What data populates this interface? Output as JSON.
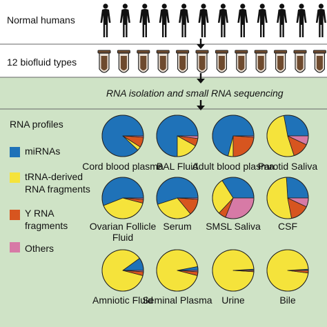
{
  "rows": {
    "humans_label": "Normal humans",
    "biofluid_label": "12 biofluid types",
    "step_label": "RNA isolation and small RNA sequencing",
    "profiles_label": "RNA profiles"
  },
  "icons": {
    "human": "human-silhouette-icon",
    "tube": "test-tube-icon",
    "arrow": "down-arrow-icon"
  },
  "counts": {
    "humans": 12,
    "tubes": 12
  },
  "legend": [
    {
      "key": "mirna",
      "label": "miRNAs",
      "color": "#1f72b8"
    },
    {
      "key": "trna",
      "label": "tRNA-derived RNA fragments",
      "color": "#f5e33b"
    },
    {
      "key": "yrna",
      "label": "Y RNA fragments",
      "color": "#d7551f"
    },
    {
      "key": "other",
      "label": "Others",
      "color": "#d77aa6"
    }
  ],
  "colors": {
    "background_band": "#cfe3c6",
    "outline": "#222222",
    "arrow": "#111111"
  },
  "chart_data": {
    "type": "pie",
    "slice_order": [
      "mirna",
      "trna",
      "yrna",
      "other"
    ],
    "pies": [
      {
        "label": "Cord blood plasma",
        "values": {
          "mirna": 0.88,
          "trna": 0.03,
          "yrna": 0.08,
          "other": 0.01
        }
      },
      {
        "label": "BAL Fluid",
        "values": {
          "mirna": 0.75,
          "trna": 0.17,
          "yrna": 0.06,
          "other": 0.02
        }
      },
      {
        "label": "Adult blood plasma",
        "values": {
          "mirna": 0.71,
          "trna": 0.04,
          "yrna": 0.24,
          "other": 0.01
        }
      },
      {
        "label": "Parotid Saliva",
        "values": {
          "mirna": 0.28,
          "trna": 0.52,
          "yrna": 0.13,
          "other": 0.07
        }
      },
      {
        "label": "Ovarian Follicle Fluid",
        "values": {
          "mirna": 0.56,
          "trna": 0.4,
          "yrna": 0.03,
          "other": 0.01
        }
      },
      {
        "label": "Serum",
        "values": {
          "mirna": 0.55,
          "trna": 0.31,
          "yrna": 0.13,
          "other": 0.01
        }
      },
      {
        "label": "SMSL Saliva",
        "values": {
          "mirna": 0.34,
          "trna": 0.29,
          "yrna": 0.06,
          "other": 0.31
        }
      },
      {
        "label": "CSF",
        "values": {
          "mirna": 0.26,
          "trna": 0.52,
          "yrna": 0.15,
          "other": 0.07
        }
      },
      {
        "label": "Amniotic Fluid",
        "values": {
          "mirna": 0.1,
          "trna": 0.86,
          "yrna": 0.03,
          "other": 0.01
        }
      },
      {
        "label": "Seminal Plasma",
        "values": {
          "mirna": 0.03,
          "trna": 0.93,
          "yrna": 0.03,
          "other": 0.01
        }
      },
      {
        "label": "Urine",
        "values": {
          "mirna": 0.01,
          "trna": 0.98,
          "yrna": 0.01,
          "other": 0.0
        }
      },
      {
        "label": "Bile",
        "values": {
          "mirna": 0.01,
          "trna": 0.97,
          "yrna": 0.02,
          "other": 0.0
        }
      }
    ]
  }
}
